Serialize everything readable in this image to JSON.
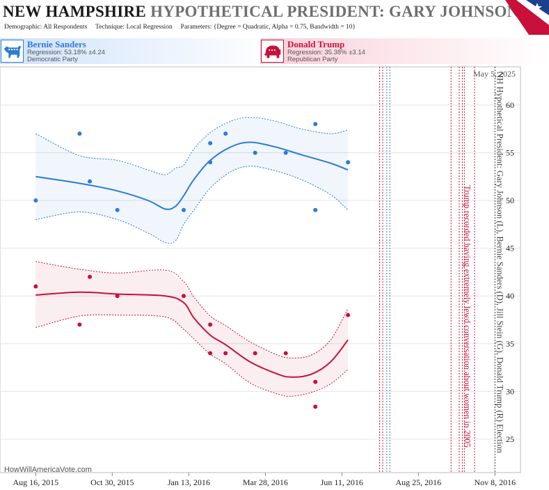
{
  "header": {
    "title_state": "NEW HAMPSHIRE",
    "title_rest": "HYPOTHETICAL PRESIDENT:  GARY JOHNSON",
    "demographic_label": "Demographic:",
    "demographic_value": "All Respondents",
    "technique_label": "Technique:",
    "technique_value": "Local Regression",
    "parameters_label": "Parameters:",
    "parameters_value": "{Degree = Quadratic, Alpha = 0.75, Bandwidth = 10}"
  },
  "candidates": [
    {
      "name": "Bernie Sanders",
      "regression": "Regression: 53.18% ±4.24",
      "party": "Democratic Party",
      "color": "#2c7bd6",
      "icon": "donkey-icon"
    },
    {
      "name": "Donald Trump",
      "regression": "Regression: 35.38% ±3.14",
      "party": "Republican Party",
      "color": "#c8103a",
      "icon": "elephant-icon"
    }
  ],
  "watermark": "HowWillAmericaVote.com",
  "date_stamp": "May 5, 2025",
  "chart_data": {
    "type": "scatter",
    "x_tick_labels": [
      "Aug 16, 2015",
      "Oct 30, 2015",
      "Jan 13, 2016",
      "Mar 28, 2016",
      "Jun 11, 2016",
      "Aug 25, 2016",
      "Nov 8, 2016"
    ],
    "x_ticks": [
      "2015-08-16",
      "2015-10-30",
      "2016-01-13",
      "2016-03-28",
      "2016-06-11",
      "2016-08-25",
      "2016-11-08"
    ],
    "xlim": [
      "2015-07-12",
      "2016-12-03"
    ],
    "y_ticks": [
      25,
      30,
      35,
      40,
      45,
      50,
      55,
      60
    ],
    "ylim": [
      21.5,
      64
    ],
    "grid": true,
    "series": [
      {
        "name": "Bernie Sanders",
        "color": "#2c7bd6",
        "points": [
          {
            "x": "2015-08-16",
            "y": 50
          },
          {
            "x": "2015-09-28",
            "y": 57
          },
          {
            "x": "2015-10-08",
            "y": 52
          },
          {
            "x": "2015-11-04",
            "y": 49
          },
          {
            "x": "2016-01-08",
            "y": 49
          },
          {
            "x": "2016-02-03",
            "y": 56
          },
          {
            "x": "2016-02-03",
            "y": 54
          },
          {
            "x": "2016-02-18",
            "y": 57
          },
          {
            "x": "2016-03-18",
            "y": 55
          },
          {
            "x": "2016-04-17",
            "y": 55
          },
          {
            "x": "2016-05-16",
            "y": 58
          },
          {
            "x": "2016-05-16",
            "y": 49
          },
          {
            "x": "2016-06-17",
            "y": 54
          }
        ],
        "regression": [
          {
            "x": "2015-08-16",
            "y": 52.5,
            "lo": 48,
            "hi": 57
          },
          {
            "x": "2015-09-28",
            "y": 51.8,
            "lo": 48.8,
            "hi": 54.7
          },
          {
            "x": "2015-11-04",
            "y": 51,
            "lo": 48,
            "hi": 54.2
          },
          {
            "x": "2015-12-04",
            "y": 50,
            "lo": 46.6,
            "hi": 53.2
          },
          {
            "x": "2015-12-21",
            "y": 49.1,
            "lo": 45.6,
            "hi": 52.7
          },
          {
            "x": "2015-12-31",
            "y": 49.4,
            "lo": 45.8,
            "hi": 53.4
          },
          {
            "x": "2016-01-08",
            "y": 50.5,
            "lo": 47.5,
            "hi": 53.7
          },
          {
            "x": "2016-01-18",
            "y": 52.2,
            "lo": 49,
            "hi": 55.4
          },
          {
            "x": "2016-02-03",
            "y": 54.2,
            "lo": 51.3,
            "hi": 57.1
          },
          {
            "x": "2016-02-23",
            "y": 55.6,
            "lo": 53,
            "hi": 58.3
          },
          {
            "x": "2016-03-13",
            "y": 56.1,
            "lo": 53.6,
            "hi": 58.7
          },
          {
            "x": "2016-04-07",
            "y": 55.6,
            "lo": 53.1,
            "hi": 58.3
          },
          {
            "x": "2016-05-02",
            "y": 54.8,
            "lo": 52.2,
            "hi": 57.5
          },
          {
            "x": "2016-05-31",
            "y": 53.9,
            "lo": 50.6,
            "hi": 57
          },
          {
            "x": "2016-06-17",
            "y": 53.2,
            "lo": 49,
            "hi": 57.4
          }
        ]
      },
      {
        "name": "Donald Trump",
        "color": "#c8103a",
        "points": [
          {
            "x": "2015-08-16",
            "y": 41
          },
          {
            "x": "2015-09-28",
            "y": 37
          },
          {
            "x": "2015-10-08",
            "y": 42
          },
          {
            "x": "2015-11-04",
            "y": 40
          },
          {
            "x": "2016-01-08",
            "y": 40
          },
          {
            "x": "2016-02-03",
            "y": 37
          },
          {
            "x": "2016-02-03",
            "y": 34
          },
          {
            "x": "2016-02-18",
            "y": 34
          },
          {
            "x": "2016-03-18",
            "y": 34
          },
          {
            "x": "2016-04-17",
            "y": 34
          },
          {
            "x": "2016-05-16",
            "y": 31
          },
          {
            "x": "2016-05-16",
            "y": 28.4
          },
          {
            "x": "2016-06-17",
            "y": 38
          }
        ],
        "regression": [
          {
            "x": "2015-08-16",
            "y": 40.1,
            "lo": 36.7,
            "hi": 43.6
          },
          {
            "x": "2015-09-28",
            "y": 40.4,
            "lo": 37.9,
            "hi": 42.8
          },
          {
            "x": "2015-11-04",
            "y": 40.2,
            "lo": 38,
            "hi": 42.4
          },
          {
            "x": "2015-12-21",
            "y": 40,
            "lo": 37.8,
            "hi": 42.7
          },
          {
            "x": "2016-01-08",
            "y": 39.3,
            "lo": 36.5,
            "hi": 41.5
          },
          {
            "x": "2016-01-18",
            "y": 37.7,
            "lo": 35.5,
            "hi": 39.9
          },
          {
            "x": "2016-02-03",
            "y": 35.9,
            "lo": 33.9,
            "hi": 37.9
          },
          {
            "x": "2016-02-18",
            "y": 34.9,
            "lo": 32.9,
            "hi": 36.9
          },
          {
            "x": "2016-03-13",
            "y": 33.1,
            "lo": 30.9,
            "hi": 35.2
          },
          {
            "x": "2016-04-07",
            "y": 31.9,
            "lo": 29.8,
            "hi": 33.9
          },
          {
            "x": "2016-04-22",
            "y": 31.5,
            "lo": 29.5,
            "hi": 33.5
          },
          {
            "x": "2016-05-12",
            "y": 31.8,
            "lo": 29.9,
            "hi": 33.8
          },
          {
            "x": "2016-05-31",
            "y": 33.1,
            "lo": 30.8,
            "hi": 35.4
          },
          {
            "x": "2016-06-17",
            "y": 35.4,
            "lo": 32.3,
            "hi": 38.7
          }
        ]
      }
    ],
    "event_lines": [
      {
        "x": "2016-07-18",
        "color": "#c8103a"
      },
      {
        "x": "2016-07-21",
        "color": "#c8103a"
      },
      {
        "x": "2016-07-25",
        "color": "#2c7bd6"
      },
      {
        "x": "2016-07-28",
        "color": "#2c7bd6"
      },
      {
        "x": "2016-09-26",
        "color": "#c8103a"
      },
      {
        "x": "2016-10-04",
        "color": "#c8103a"
      },
      {
        "x": "2016-10-07",
        "color": "#c8103a"
      },
      {
        "x": "2016-10-09",
        "color": "#c8103a"
      },
      {
        "x": "2016-10-19",
        "color": "#c8103a"
      },
      {
        "x": "2016-11-08",
        "color": "#333333"
      }
    ],
    "annotations": [
      {
        "text": "Trump recorded having extremely lewd conversation about women in 2005",
        "x": "2016-10-07",
        "color": "#c8103a"
      },
      {
        "text": "NH Hypothetical President: Gary Johnson (L), Bernie Sanders (D), Jill Stein (G), Donald Trump (R) Election",
        "x": "2016-11-08",
        "color": "#444444"
      }
    ]
  }
}
